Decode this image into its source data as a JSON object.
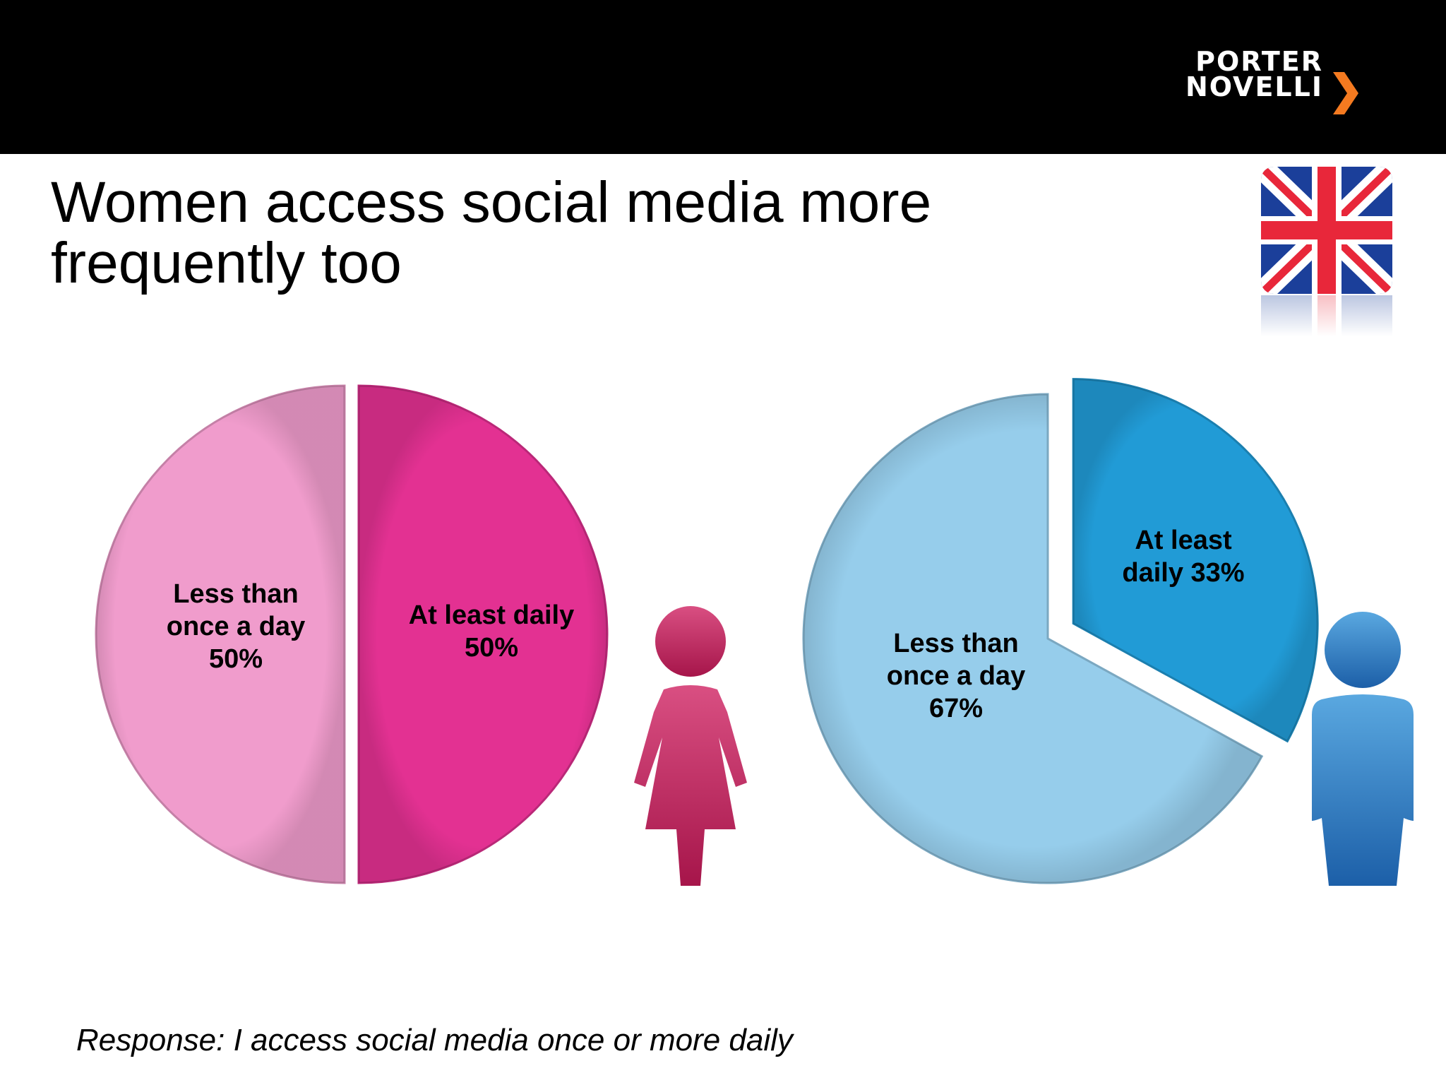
{
  "header": {
    "brand_line1": "PORTER",
    "brand_line2": "NOVELLI"
  },
  "title": "Women access social media more frequently too",
  "flag_icon": "uk-flag-icon",
  "colors": {
    "women_light": "#f09ccc",
    "women_dark": "#e33192",
    "men_light": "#96cdeb",
    "men_dark": "#219bd6",
    "brand_orange": "#f47a20"
  },
  "chart_data": [
    {
      "type": "pie",
      "group_icon": "woman-icon",
      "slices": [
        {
          "label": "At least daily  50%",
          "value": 50,
          "color": "#e33192"
        },
        {
          "label": "Less than once a day 50%",
          "value": 50,
          "color": "#f09ccc"
        }
      ]
    },
    {
      "type": "pie",
      "group_icon": "man-icon",
      "slices": [
        {
          "label": "At least daily 33%",
          "value": 33,
          "color": "#219bd6"
        },
        {
          "label": "Less than once a day 67%",
          "value": 67,
          "color": "#96cdeb"
        }
      ]
    }
  ],
  "footnote": "Response: I access social media once or more daily"
}
